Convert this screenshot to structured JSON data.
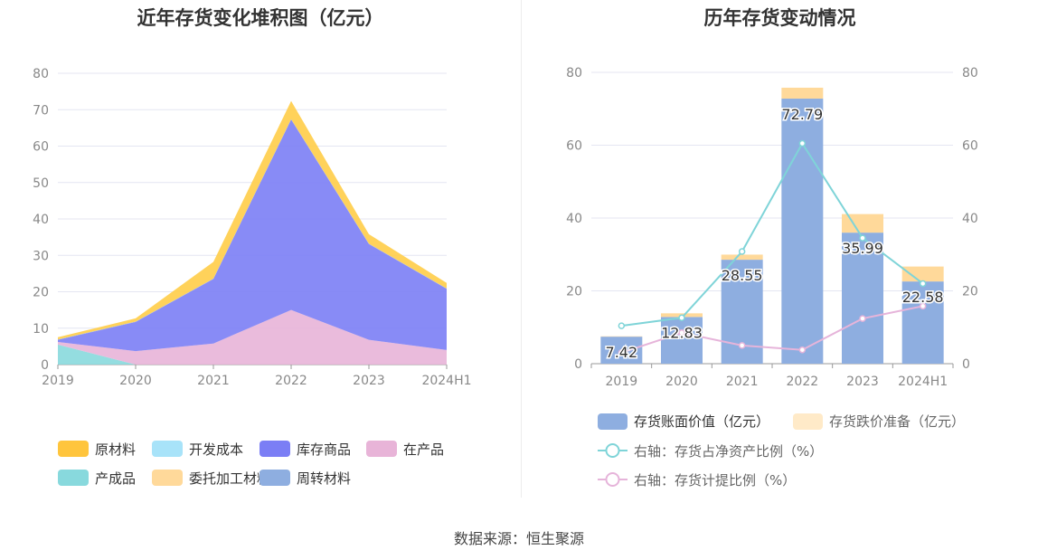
{
  "source_text": "数据来源：恒生聚源",
  "chart_data": [
    {
      "type": "area",
      "stacked": true,
      "title": "近年存货变化堆积图（亿元）",
      "categories": [
        "2019",
        "2020",
        "2021",
        "2022",
        "2023",
        "2024H1"
      ],
      "yticks": [
        "0",
        "10",
        "20",
        "30",
        "40",
        "50",
        "60",
        "70",
        "80"
      ],
      "ylim": [
        0,
        80
      ],
      "grid": true,
      "legend_position": "bottom",
      "series": [
        {
          "name": "产成品",
          "color": "#88d9dd",
          "values": [
            5.5,
            0,
            0,
            0,
            0,
            0
          ]
        },
        {
          "name": "在产品",
          "color": "#e8b4d8",
          "values": [
            0.7,
            3.7,
            5.8,
            15.0,
            6.8,
            4.0
          ]
        },
        {
          "name": "库存商品",
          "color": "#7b7ef5",
          "values": [
            0.6,
            8.0,
            17.7,
            52.3,
            26.3,
            16.8
          ]
        },
        {
          "name": "周转材料",
          "color": "#8eaee0",
          "values": [
            0.1,
            0.1,
            0.1,
            0.1,
            0.1,
            0.1
          ]
        },
        {
          "name": "开发成本",
          "color": "#a8e3f9",
          "values": [
            0,
            0,
            0,
            0,
            0,
            0
          ]
        },
        {
          "name": "委托加工材料",
          "color": "#ffd99a",
          "values": [
            0,
            0,
            0,
            0,
            0,
            0
          ]
        },
        {
          "name": "原材料",
          "color": "#ffcd48",
          "values": [
            0.6,
            0.9,
            4.6,
            5.0,
            2.6,
            1.5
          ]
        }
      ],
      "legend": [
        {
          "name": "原材料",
          "color": "#ffc53d"
        },
        {
          "name": "开发成本",
          "color": "#a8e3f9"
        },
        {
          "name": "库存商品",
          "color": "#7b7ef5"
        },
        {
          "name": "在产品",
          "color": "#e8b4d8"
        },
        {
          "name": "产成品",
          "color": "#88d9dd"
        },
        {
          "name": "委托加工材料",
          "color": "#ffd99a"
        },
        {
          "name": "周转材料",
          "color": "#8eaee0"
        }
      ]
    },
    {
      "type": "bar",
      "stacked": true,
      "title": "历年存货变动情况",
      "categories": [
        "2019",
        "2020",
        "2021",
        "2022",
        "2023",
        "2024H1"
      ],
      "yticks_left": [
        "0",
        "20",
        "40",
        "60",
        "80"
      ],
      "yticks_right": [
        "0",
        "20",
        "40",
        "60",
        "80"
      ],
      "ylim": [
        0,
        80
      ],
      "grid": true,
      "legend_position": "bottom",
      "series": [
        {
          "name": "存货账面价值（亿元）",
          "kind": "bar",
          "color": "#8eaee0",
          "values": [
            7.42,
            12.83,
            28.55,
            72.79,
            35.99,
            22.58
          ],
          "labels": [
            "7.42",
            "12.83",
            "28.55",
            "72.79",
            "35.99",
            "22.58"
          ]
        },
        {
          "name": "存货跌价准备（亿元）",
          "kind": "bar",
          "color": "#ffd99a",
          "values": [
            0.1,
            1.0,
            1.4,
            3.0,
            5.1,
            4.1
          ]
        },
        {
          "name": "右轴：存货占净资产比例（%）",
          "kind": "line",
          "color": "#7fd4d8",
          "values": [
            10.4,
            12.6,
            30.8,
            60.5,
            34.5,
            22.0
          ]
        },
        {
          "name": "右轴：存货计提比例（%）",
          "kind": "line",
          "color": "#e6b4da",
          "values": [
            3.0,
            8.5,
            5.0,
            3.8,
            12.4,
            15.8
          ]
        }
      ]
    }
  ]
}
